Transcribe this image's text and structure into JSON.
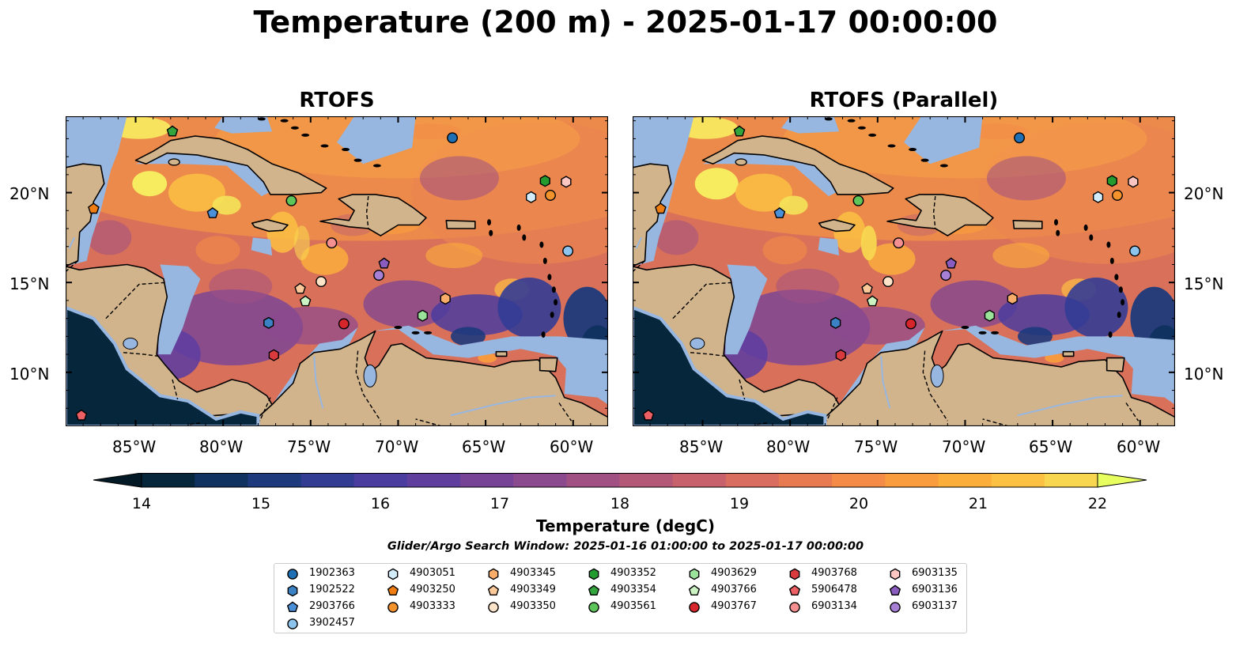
{
  "title": "Temperature (200 m) - 2025-01-17 00:00:00",
  "panels": [
    {
      "title": "RTOFS"
    },
    {
      "title": "RTOFS (Parallel)"
    }
  ],
  "lat_ticks": [
    "20°N",
    "15°N",
    "10°N"
  ],
  "lon_ticks": [
    "85°W",
    "80°W",
    "75°W",
    "70°W",
    "65°W",
    "60°W"
  ],
  "colorbar": {
    "label": "Temperature (degC)",
    "ticks": [
      "14",
      "15",
      "16",
      "17",
      "18",
      "19",
      "20",
      "21",
      "22"
    ],
    "colors": [
      "#06263c",
      "#0f3260",
      "#1d3a7c",
      "#333c93",
      "#4b3c9f",
      "#603e9e",
      "#764397",
      "#8b4a8e",
      "#a05083",
      "#b45878",
      "#c7626c",
      "#d96d5f",
      "#e87a52",
      "#f48c47",
      "#f99c3e",
      "#fcae3b",
      "#fcc043",
      "#f8d650"
    ],
    "under_color": "#031a26",
    "over_color": "#e8ff60"
  },
  "search_window": "Glider/Argo Search Window: 2025-01-16 01:00:00 to 2025-01-17 00:00:00",
  "legend": [
    {
      "id": "1902363",
      "color": "#1f6fb5",
      "shape": "circle"
    },
    {
      "id": "1902522",
      "color": "#3b82c4",
      "shape": "hexagon"
    },
    {
      "id": "2903766",
      "color": "#4a90d9",
      "shape": "pentagon"
    },
    {
      "id": "3902457",
      "color": "#8cc4ee",
      "shape": "circle"
    },
    {
      "id": "4903051",
      "color": "#d2ecfa",
      "shape": "hexagon"
    },
    {
      "id": "4903250",
      "color": "#f07d12",
      "shape": "pentagon"
    },
    {
      "id": "4903333",
      "color": "#f4922b",
      "shape": "circle"
    },
    {
      "id": "4903345",
      "color": "#f8ac6a",
      "shape": "hexagon"
    },
    {
      "id": "4903349",
      "color": "#fbc89a",
      "shape": "pentagon"
    },
    {
      "id": "4903350",
      "color": "#fde3c8",
      "shape": "circle"
    },
    {
      "id": "4903352",
      "color": "#239b2e",
      "shape": "hexagon"
    },
    {
      "id": "4903354",
      "color": "#34a43d",
      "shape": "pentagon"
    },
    {
      "id": "4903561",
      "color": "#5ec55a",
      "shape": "circle"
    },
    {
      "id": "4903629",
      "color": "#9be29a",
      "shape": "hexagon"
    },
    {
      "id": "4903766",
      "color": "#caf2c2",
      "shape": "pentagon"
    },
    {
      "id": "4903767",
      "color": "#d6252b",
      "shape": "circle"
    },
    {
      "id": "4903768",
      "color": "#d83a3e",
      "shape": "hexagon"
    },
    {
      "id": "5906478",
      "color": "#ec5f64",
      "shape": "pentagon"
    },
    {
      "id": "6903134",
      "color": "#f59090",
      "shape": "circle"
    },
    {
      "id": "6903135",
      "color": "#fbc6c2",
      "shape": "hexagon"
    },
    {
      "id": "6903136",
      "color": "#8a5cc0",
      "shape": "pentagon"
    },
    {
      "id": "6903137",
      "color": "#a580d4",
      "shape": "circle"
    }
  ],
  "floats": [
    {
      "id": "1902363",
      "lon": -66.9,
      "lat": 23.05
    },
    {
      "id": "1902522",
      "lon": -77.4,
      "lat": 12.75
    },
    {
      "id": "2903766",
      "lon": -80.6,
      "lat": 18.85
    },
    {
      "id": "3902457",
      "lon": -60.3,
      "lat": 16.75
    },
    {
      "id": "4903051",
      "lon": -62.4,
      "lat": 19.75
    },
    {
      "id": "4903250",
      "lon": -87.4,
      "lat": 19.1
    },
    {
      "id": "4903333",
      "lon": -61.3,
      "lat": 19.85
    },
    {
      "id": "4903345",
      "lon": -67.3,
      "lat": 14.1
    },
    {
      "id": "4903349",
      "lon": -75.6,
      "lat": 14.65
    },
    {
      "id": "4903350",
      "lon": -74.4,
      "lat": 15.05
    },
    {
      "id": "4903352",
      "lon": -61.6,
      "lat": 20.65
    },
    {
      "id": "4903354",
      "lon": -82.9,
      "lat": 23.4
    },
    {
      "id": "4903561",
      "lon": -76.1,
      "lat": 19.55
    },
    {
      "id": "4903629",
      "lon": -68.6,
      "lat": 13.15
    },
    {
      "id": "4903766",
      "lon": -75.3,
      "lat": 13.95
    },
    {
      "id": "4903767",
      "lon": -73.1,
      "lat": 12.7
    },
    {
      "id": "4903768",
      "lon": -77.1,
      "lat": 10.95
    },
    {
      "id": "5906478",
      "lon": -88.1,
      "lat": 7.6
    },
    {
      "id": "6903134",
      "lon": -73.8,
      "lat": 17.2
    },
    {
      "id": "6903135",
      "lon": -60.4,
      "lat": 20.6
    },
    {
      "id": "6903136",
      "lon": -70.8,
      "lat": 16.05
    },
    {
      "id": "6903137",
      "lon": -71.1,
      "lat": 15.4
    }
  ]
}
